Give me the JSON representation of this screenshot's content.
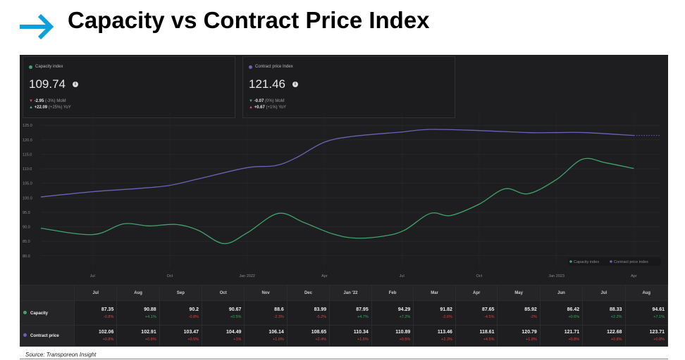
{
  "title": "Capacity vs Contract Price Index",
  "cards": [
    {
      "label": "Capacity index",
      "color": "#3fa46a",
      "value": "109.74",
      "mom_val": "-2.95",
      "mom_pct": "(-3%)",
      "mom_label": "MoM",
      "mom_dir": "down",
      "yoy_val": "+22.09",
      "yoy_pct": "(+25%)",
      "yoy_label": "YoY",
      "yoy_dir": "up"
    },
    {
      "label": "Contract price Index",
      "color": "#6a62b8",
      "value": "121.46",
      "mom_val": "-0.07",
      "mom_pct": "(0%)",
      "mom_label": "MoM",
      "mom_dir": "down",
      "yoy_val": "+0.67",
      "yoy_pct": "(+1%)",
      "yoy_label": "YoY",
      "yoy_dir": "up"
    }
  ],
  "chart_data": {
    "type": "line",
    "x_unit": "months since Jul 2021",
    "xlim": [
      -2,
      22
    ],
    "ylim": [
      78,
      127
    ],
    "yticks": [
      80,
      85,
      90,
      95,
      100,
      105,
      110,
      115,
      120,
      125
    ],
    "ytick_labels": [
      "80.0",
      "85.0",
      "90.0",
      "95.0",
      "100.0",
      "105.0",
      "110.0",
      "115.0",
      "120.0",
      "125.0"
    ],
    "xticks": [
      0,
      3,
      6,
      9,
      12,
      15,
      18,
      21
    ],
    "xtick_labels": [
      "Jul",
      "Oct",
      "Jan 2022",
      "Apr",
      "Jul",
      "Oct",
      "Jan 2023",
      "Apr"
    ],
    "legend": {
      "position": "bottom-right",
      "entries": [
        "Capacity index",
        "Contract price index"
      ]
    },
    "series": [
      {
        "name": "Capacity index",
        "color": "#3fa46a",
        "points": [
          [
            -2,
            89.5
          ],
          [
            0,
            87.3
          ],
          [
            1.2,
            91
          ],
          [
            2.2,
            90.3
          ],
          [
            3.25,
            90.8
          ],
          [
            4.1,
            88.8
          ],
          [
            5.1,
            84.2
          ],
          [
            6,
            87.9
          ],
          [
            7.2,
            94.6
          ],
          [
            8.2,
            91.5
          ],
          [
            9.3,
            87.6
          ],
          [
            10.2,
            86.1
          ],
          [
            11.3,
            86.8
          ],
          [
            12.1,
            88.8
          ],
          [
            13.1,
            94.6
          ],
          [
            13.9,
            93.9
          ],
          [
            15,
            97.8
          ],
          [
            16,
            103.1
          ],
          [
            16.9,
            101.4
          ],
          [
            18,
            106.3
          ],
          [
            19,
            113.3
          ],
          [
            19.9,
            112.1
          ],
          [
            21,
            110.1
          ]
        ]
      },
      {
        "name": "Contract price index",
        "color": "#6a62b8",
        "points": [
          [
            -2,
            100.3
          ],
          [
            0,
            102.1
          ],
          [
            1.9,
            103.3
          ],
          [
            3,
            104.3
          ],
          [
            4.1,
            106.5
          ],
          [
            6,
            110.4
          ],
          [
            7.1,
            111.1
          ],
          [
            7.9,
            113.8
          ],
          [
            9,
            119.2
          ],
          [
            10.1,
            121.2
          ],
          [
            12,
            122.7
          ],
          [
            13.1,
            123.6
          ],
          [
            15,
            123.2
          ],
          [
            16.9,
            122.5
          ],
          [
            18,
            122.5
          ],
          [
            19.1,
            122.5
          ],
          [
            21,
            121.5
          ]
        ],
        "forecast_to": 22
      }
    ]
  },
  "table": {
    "months": [
      "Jul",
      "Aug",
      "Sep",
      "Oct",
      "Nov",
      "Dec",
      "Jan '22",
      "Feb",
      "Mar",
      "Apr",
      "May",
      "Jun",
      "Jul",
      "Aug"
    ],
    "rows": [
      {
        "label": "Capacity",
        "color": "#3fa46a",
        "values": [
          "87.35",
          "90.88",
          "90.2",
          "90.67",
          "88.6",
          "83.99",
          "87.95",
          "94.29",
          "91.82",
          "87.65",
          "85.92",
          "86.42",
          "88.33",
          "94.61"
        ],
        "changes": [
          "-0.8%",
          "+4.1%",
          "-0.8%",
          "+0.5%",
          "-2.3%",
          "-5.2%",
          "+4.7%",
          "+7.2%",
          "-2.6%",
          "-4.5%",
          "-2%",
          "+0.6%",
          "+2.2%",
          "+7.1%"
        ]
      },
      {
        "label": "Contract price",
        "color": "#6a62b8",
        "values": [
          "102.06",
          "102.91",
          "103.47",
          "104.49",
          "106.14",
          "108.65",
          "110.34",
          "110.89",
          "113.46",
          "118.61",
          "120.79",
          "121.71",
          "122.68",
          "123.71"
        ],
        "changes": [
          "+0.8%",
          "+0.8%",
          "+0.5%",
          "+1%",
          "+1.6%",
          "+2.4%",
          "+1.6%",
          "+0.5%",
          "+2.3%",
          "+4.5%",
          "+1.8%",
          "+0.8%",
          "+0.8%",
          "+0.8%"
        ]
      }
    ]
  },
  "source": "Source: Transporeon Insight"
}
